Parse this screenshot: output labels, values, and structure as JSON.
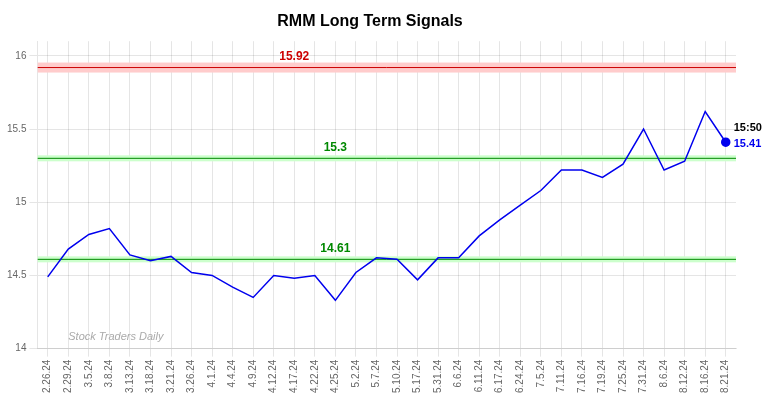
{
  "chart_data": {
    "type": "line",
    "title": "RMM Long Term Signals",
    "categories": [
      "2.26.24",
      "2.29.24",
      "3.5.24",
      "3.8.24",
      "3.13.24",
      "3.18.24",
      "3.21.24",
      "3.26.24",
      "4.1.24",
      "4.4.24",
      "4.9.24",
      "4.12.24",
      "4.17.24",
      "4.22.24",
      "4.25.24",
      "5.2.24",
      "5.7.24",
      "5.10.24",
      "5.17.24",
      "5.31.24",
      "6.6.24",
      "6.11.24",
      "6.17.24",
      "6.24.24",
      "7.5.24",
      "7.11.24",
      "7.16.24",
      "7.19.24",
      "7.25.24",
      "7.31.24",
      "8.6.24",
      "8.12.24",
      "8.16.24",
      "8.21.24"
    ],
    "values": [
      14.49,
      14.68,
      14.78,
      14.82,
      14.64,
      14.6,
      14.63,
      14.52,
      14.5,
      14.42,
      14.35,
      14.5,
      14.48,
      14.5,
      14.33,
      14.52,
      14.62,
      14.61,
      14.47,
      14.62,
      14.62,
      14.77,
      14.88,
      14.98,
      15.08,
      15.22,
      15.22,
      15.17,
      15.26,
      15.5,
      15.22,
      15.28,
      15.62,
      15.41
    ],
    "color": "#0000ee",
    "ylim": [
      14.0,
      16.1
    ],
    "yticks": [
      14,
      14.5,
      15,
      15.5,
      16
    ],
    "grid": true,
    "annotations": [
      {
        "type": "resistance",
        "y": 15.92,
        "text": "15.92",
        "color": "#cc0000",
        "band_color": "#ffcccc"
      },
      {
        "type": "support",
        "y": 15.3,
        "text": "15.3",
        "color": "#008800",
        "band_color": "#ccffcc"
      },
      {
        "type": "support",
        "y": 14.61,
        "text": "14.61",
        "color": "#008800",
        "band_color": "#ccffcc"
      },
      {
        "type": "end_time",
        "text": "15:50"
      },
      {
        "type": "end_price",
        "y": 15.41,
        "text": "15.41",
        "color": "#0000ee"
      },
      {
        "type": "watermark",
        "text": "Stock Traders Daily",
        "color": "#aaaaaa"
      }
    ]
  }
}
